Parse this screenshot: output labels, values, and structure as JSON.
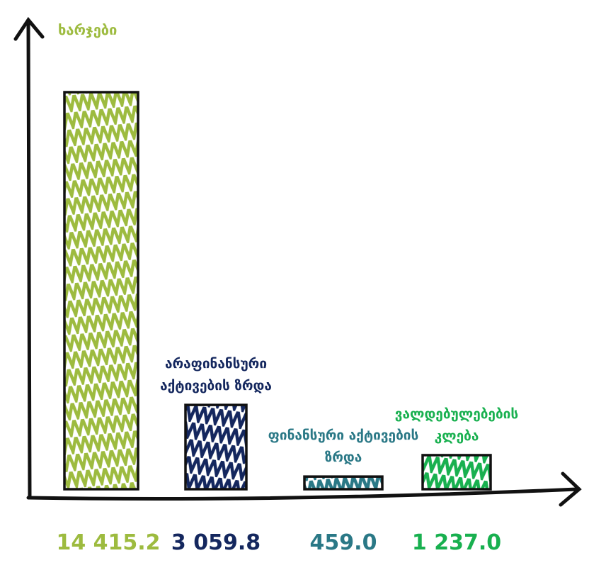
{
  "chart_data": {
    "type": "bar",
    "title": "ხარჯები",
    "categories": [
      null,
      "არაფინანსური აქტივების ზრდა",
      "ფინანსური აქტივების ზრდა",
      "ვალდებულებების კლება"
    ],
    "values": [
      14415.2,
      3059.8,
      459.0,
      1237.0
    ],
    "value_labels": [
      "14 415.2",
      "3 059.8",
      "459.0",
      "1 237.0"
    ],
    "colors": [
      "#9dbb3f",
      "#14275e",
      "#2a7886",
      "#18b04f"
    ],
    "title_color": "#9dbb3f"
  }
}
